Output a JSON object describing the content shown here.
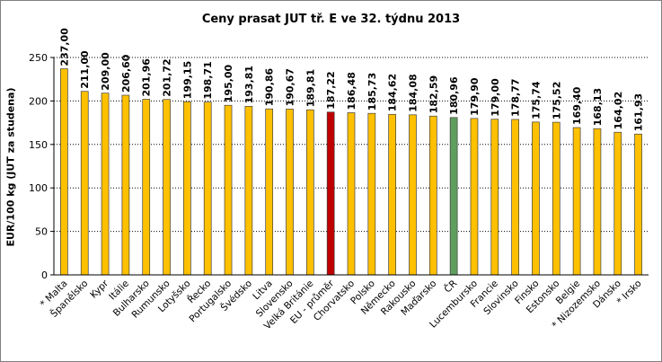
{
  "chart_data": {
    "type": "bar",
    "title": "Ceny prasat JUT  tř. E  ve 32. týdnu 2013",
    "ylabel": "EUR/100 kg (JUT za studena)",
    "xlabel": "",
    "ylim": [
      0,
      250
    ],
    "yticks": [
      "0",
      "50",
      "100",
      "150",
      "200",
      "250"
    ],
    "grid": true,
    "categories": [
      "* Malta",
      "Španělsko",
      "Kypr",
      "Itálie",
      "Bulharsko",
      "Rumunsko",
      "Lotyšsko",
      "Řecko",
      "Portugalsko",
      "Švédsko",
      "Litva",
      "Slovensko",
      "Velká Británie",
      "EU - průměr",
      "Chorvatsko",
      "Polsko",
      "Německo",
      "Rakousko",
      "Maďarsko",
      "ČR",
      "Lucembursko",
      "Francie",
      "Slovinsko",
      "Finsko",
      "Estonsko",
      "Belgie",
      "* Nizozemsko",
      "Dánsko",
      "* Irsko"
    ],
    "values": [
      237.0,
      211.0,
      209.0,
      206.6,
      201.96,
      201.72,
      199.15,
      198.71,
      195.0,
      193.81,
      190.86,
      190.67,
      189.81,
      187.22,
      186.48,
      185.73,
      184.62,
      184.08,
      182.59,
      180.96,
      179.9,
      179.0,
      178.77,
      175.74,
      175.52,
      169.4,
      168.13,
      164.02,
      161.93
    ],
    "labels": [
      "237,00",
      "211,00",
      "209,00",
      "206,60",
      "201,96",
      "201,72",
      "199,15",
      "198,71",
      "195,00",
      "193,81",
      "190,86",
      "190,67",
      "189,81",
      "187,22",
      "186,48",
      "185,73",
      "184,62",
      "184,08",
      "182,59",
      "180,96",
      "179,90",
      "179,00",
      "178,77",
      "175,74",
      "175,52",
      "169,40",
      "168,13",
      "164,02",
      "161,93"
    ],
    "colors": {
      "default": "#FFC000",
      "eu_average": "#C00000",
      "cr": "#5E9E5E",
      "bar_border": "#404040",
      "grid": "#000000"
    },
    "highlight": {
      "EU - průměr": "eu_average",
      "ČR": "cr"
    }
  }
}
